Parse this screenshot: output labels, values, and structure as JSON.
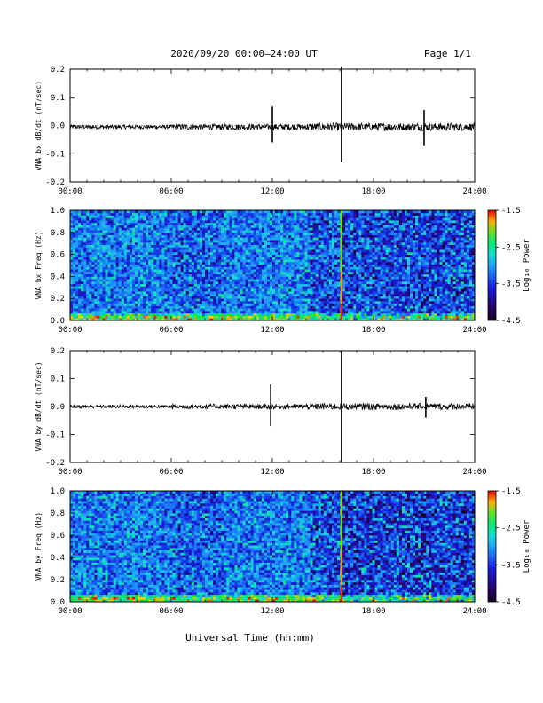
{
  "header": {
    "title": "2020/09/20  00:00–24:00 UT",
    "page": "Page 1/1"
  },
  "chart_data": [
    {
      "type": "line",
      "ylabel": "VNA bx dB/dt (nT/sec)",
      "xlim": [
        0,
        24
      ],
      "ylim": [
        -0.2,
        0.2
      ],
      "yticks": [
        "0.2",
        "0.1",
        "0.0",
        "-0.1",
        "-0.2"
      ],
      "xticks": [
        "00:00",
        "06:00",
        "12:00",
        "18:00",
        "24:00"
      ],
      "baseline": -0.005,
      "noise_band": 0.007,
      "events": [
        {
          "x": 12.0,
          "ymax": 0.07,
          "ymin": -0.06
        },
        {
          "x": 16.1,
          "ymax": 0.21,
          "ymin": -0.13
        },
        {
          "x": 21.0,
          "ymax": 0.055,
          "ymin": -0.07
        }
      ]
    },
    {
      "type": "heatmap",
      "ylabel": "VNA bx Freq (Hz)",
      "xlim": [
        0,
        24
      ],
      "ylim": [
        0,
        1.0
      ],
      "yticks": [
        "1.0",
        "0.8",
        "0.6",
        "0.4",
        "0.2",
        "0.0"
      ],
      "xticks": [
        "00:00",
        "06:00",
        "12:00",
        "18:00",
        "24:00"
      ],
      "colorbar": {
        "label": "Log₁₀ Power",
        "range": [
          -4.5,
          -1.5
        ],
        "ticks": [
          "-1.5",
          "-2.5",
          "-3.5",
          "-4.5"
        ]
      },
      "events": [
        16.1
      ]
    },
    {
      "type": "line",
      "ylabel": "VNA by dB/dt (nT/sec)",
      "xlim": [
        0,
        24
      ],
      "ylim": [
        -0.2,
        0.2
      ],
      "yticks": [
        "0.2",
        "0.1",
        "0.0",
        "-0.1",
        "-0.2"
      ],
      "xticks": [
        "00:00",
        "06:00",
        "12:00",
        "18:00",
        "24:00"
      ],
      "baseline": 0.0,
      "noise_band": 0.006,
      "events": [
        {
          "x": 11.9,
          "ymax": 0.08,
          "ymin": -0.07
        },
        {
          "x": 16.1,
          "ymax": 0.2,
          "ymin": -0.2
        },
        {
          "x": 21.1,
          "ymax": 0.035,
          "ymin": -0.04
        }
      ]
    },
    {
      "type": "heatmap",
      "ylabel": "VNA by Freq (Hz)",
      "xlim": [
        0,
        24
      ],
      "ylim": [
        0,
        1.0
      ],
      "yticks": [
        "1.0",
        "0.8",
        "0.6",
        "0.4",
        "0.2",
        "0.0"
      ],
      "xticks": [
        "00:00",
        "06:00",
        "12:00",
        "18:00",
        "24:00"
      ],
      "colorbar": {
        "label": "Log₁₀ Power",
        "range": [
          -4.5,
          -1.5
        ],
        "ticks": [
          "-1.5",
          "-2.5",
          "-3.5",
          "-4.5"
        ]
      },
      "events": [
        16.1
      ]
    }
  ],
  "xaxis_label": "Universal Time (hh:mm)"
}
